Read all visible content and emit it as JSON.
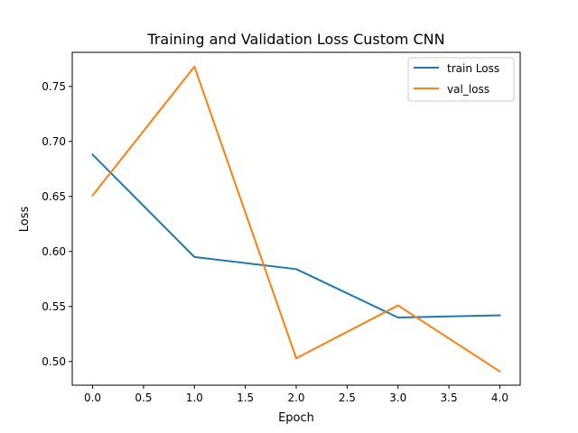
{
  "chart_data": {
    "type": "line",
    "title": "Training and Validation Loss Custom CNN",
    "xlabel": "Epoch",
    "ylabel": "Loss",
    "x": [
      0,
      1,
      2,
      3,
      4
    ],
    "xlim": [
      -0.2,
      4.2
    ],
    "ylim": [
      0.4785,
      0.781
    ],
    "x_ticks": [
      "0.0",
      "0.5",
      "1.0",
      "1.5",
      "2.0",
      "2.5",
      "3.0",
      "3.5",
      "4.0"
    ],
    "y_ticks": [
      "0.50",
      "0.55",
      "0.60",
      "0.65",
      "0.70",
      "0.75"
    ],
    "grid": false,
    "legend_position": "top-right",
    "series": [
      {
        "name": "train Loss",
        "color": "#1f77b4",
        "values": [
          0.688,
          0.595,
          0.584,
          0.54,
          0.542
        ]
      },
      {
        "name": "val_loss",
        "color": "#ff7f0e",
        "values": [
          0.651,
          0.768,
          0.503,
          0.551,
          0.491
        ]
      }
    ]
  }
}
